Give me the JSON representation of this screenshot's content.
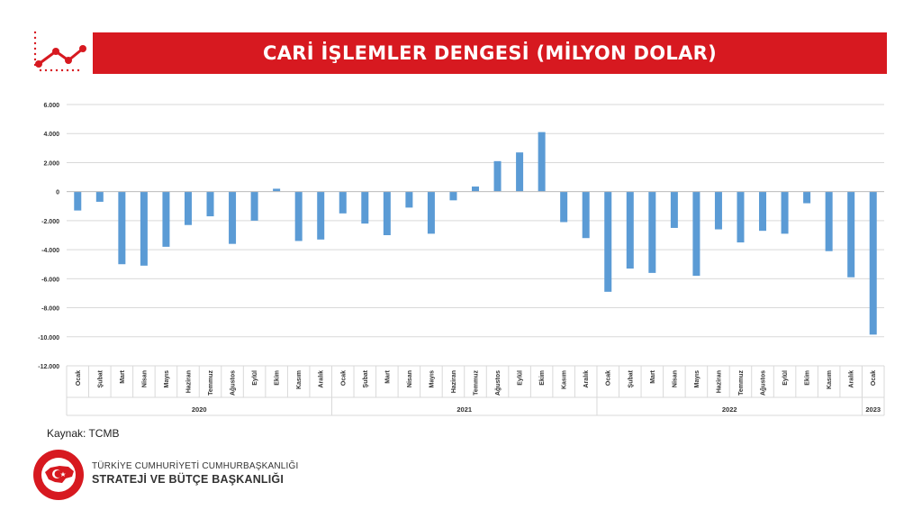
{
  "header": {
    "title": "CARİ İŞLEMLER DENGESİ (MİLYON DOLAR)"
  },
  "source": "Kaynak: TCMB",
  "org": {
    "line1": "TÜRKİYE CUMHURİYETİ CUMHURBAŞKANLIĞI",
    "line2": "STRATEJİ VE BÜTÇE BAŞKANLIĞI",
    "logo_text": "T.C. CUMHURBAŞKANLIĞI STRATEJİ VE BÜTÇE BAŞKANLIĞI"
  },
  "colors": {
    "accent": "#d71920",
    "bar": "#5b9bd5",
    "grid": "#d9d9d9"
  },
  "chart_data": {
    "type": "bar",
    "title": "CARİ İŞLEMLER DENGESİ (MİLYON DOLAR)",
    "xlabel": "",
    "ylabel": "",
    "ylim": [
      -12000,
      6000
    ],
    "yticks": [
      6000,
      4000,
      2000,
      0,
      -2000,
      -4000,
      -6000,
      -8000,
      -10000,
      -12000
    ],
    "ytick_labels": [
      "6.000",
      "4.000",
      "2.000",
      "0",
      "-2.000",
      "-4.000",
      "-6.000",
      "-8.000",
      "-10.000",
      "-12.000"
    ],
    "grid": true,
    "legend": "none",
    "categories": [
      "Ocak",
      "Şubat",
      "Mart",
      "Nisan",
      "Mayıs",
      "Haziran",
      "Temmuz",
      "Ağustos",
      "Eylül",
      "Ekim",
      "Kasım",
      "Aralık",
      "Ocak",
      "Şubat",
      "Mart",
      "Nisan",
      "Mayıs",
      "Haziran",
      "Temmuz",
      "Ağustos",
      "Eylül",
      "Ekim",
      "Kasım",
      "Aralık",
      "Ocak",
      "Şubat",
      "Mart",
      "Nisan",
      "Mayıs",
      "Haziran",
      "Temmuz",
      "Ağustos",
      "Eylül",
      "Ekim",
      "Kasım",
      "Aralık",
      "Ocak"
    ],
    "years": [
      {
        "label": "2020",
        "count": 12
      },
      {
        "label": "2021",
        "count": 12
      },
      {
        "label": "2022",
        "count": 12
      },
      {
        "label": "2023",
        "count": 1
      }
    ],
    "values": [
      -1300,
      -700,
      -5000,
      -5100,
      -3800,
      -2300,
      -1700,
      -3600,
      -2000,
      200,
      -3400,
      -3300,
      -1500,
      -2200,
      -3000,
      -1100,
      -2900,
      -600,
      350,
      2100,
      2700,
      4100,
      -2100,
      -3200,
      -6900,
      -5300,
      -5600,
      -2500,
      -5800,
      -2600,
      -3500,
      -2700,
      -2900,
      -800,
      -4100,
      -5900,
      -9850
    ]
  }
}
